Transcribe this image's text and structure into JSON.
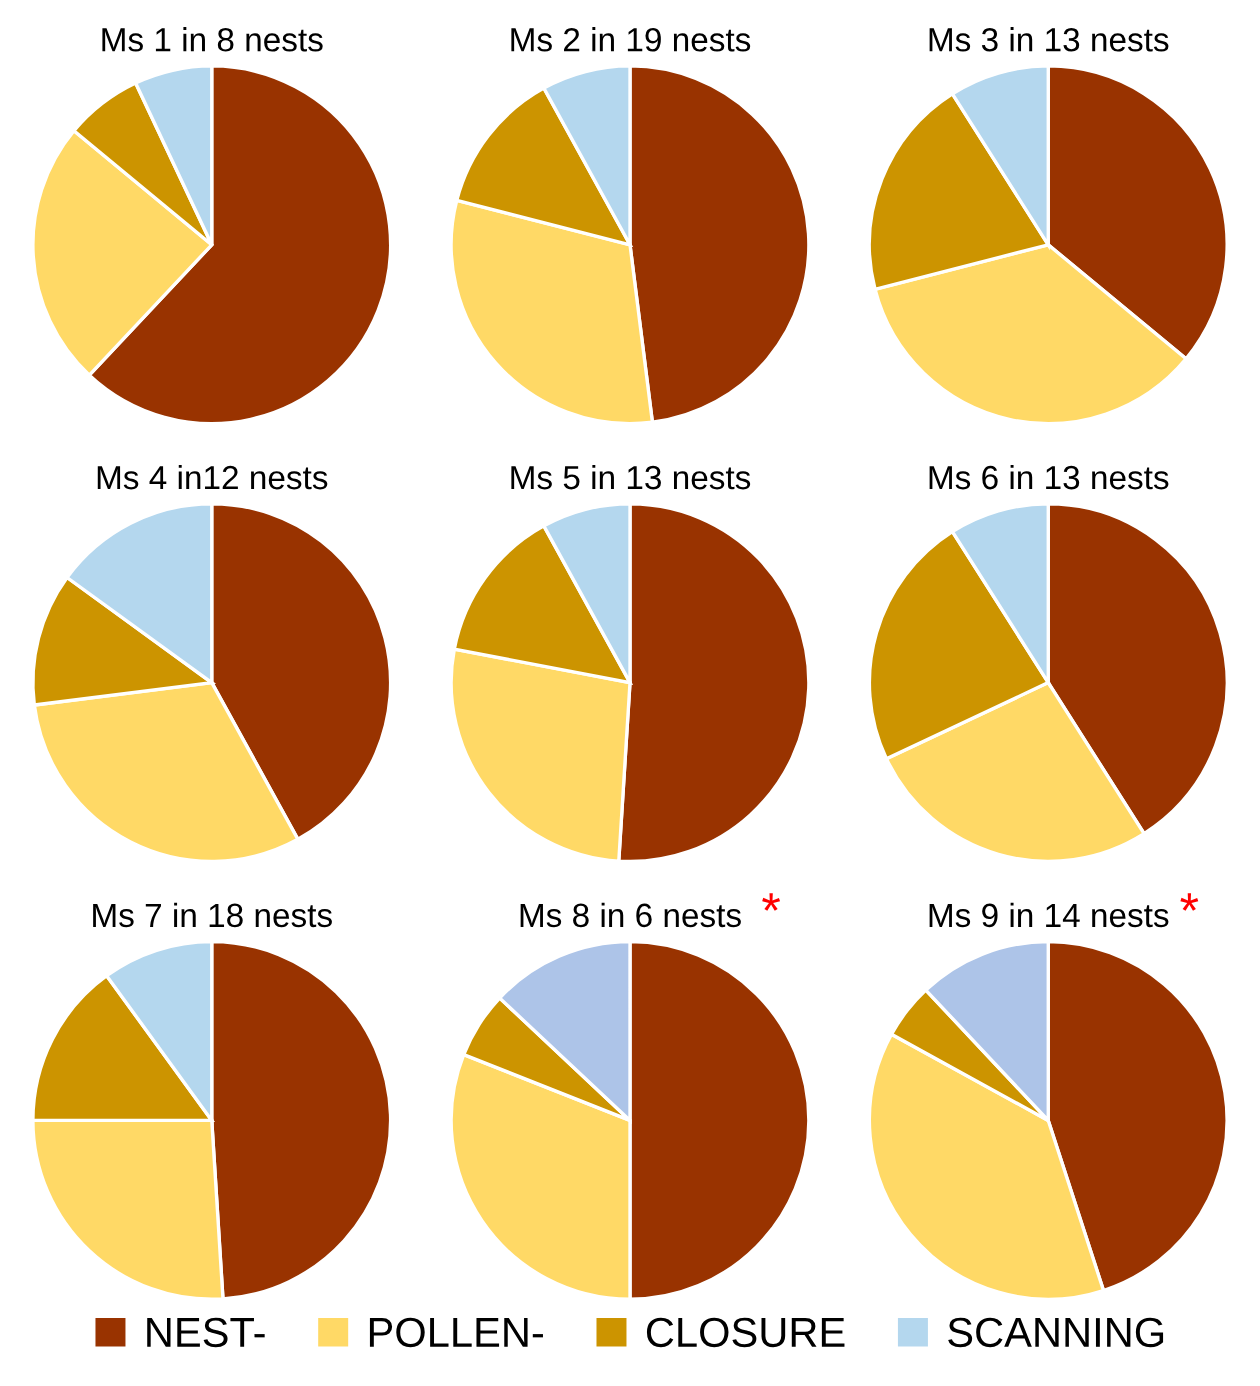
{
  "chart_data": [
    {
      "type": "pie",
      "title": "Ms 1 in 8 nests",
      "legend": "bottom",
      "categories": [
        "NEST-",
        "POLLEN-",
        "CLOSURE",
        "SCANNING"
      ],
      "values": [
        62,
        24,
        7,
        7
      ],
      "colors": [
        "#993300",
        "#ffd966",
        "#cc9400",
        "#b4d7ee"
      ]
    },
    {
      "type": "pie",
      "title": "Ms 2 in 19 nests",
      "categories": [
        null,
        null,
        null,
        null
      ],
      "values": [
        48,
        31,
        13,
        8
      ],
      "colors": [
        "#993300",
        "#ffd966",
        "#cc9400",
        "#b4d7ee"
      ]
    },
    {
      "type": "pie",
      "title": "Ms 3 in 13 nests",
      "categories": [
        null,
        null,
        null,
        null
      ],
      "values": [
        36,
        35,
        20,
        9
      ],
      "colors": [
        "#993300",
        "#ffd966",
        "#cc9400",
        "#b4d7ee"
      ]
    },
    {
      "type": "pie",
      "title": "Ms 4 in12 nests",
      "categories": [
        null,
        null,
        null,
        null
      ],
      "values": [
        42,
        31,
        12,
        15
      ],
      "colors": [
        "#993300",
        "#ffd966",
        "#cc9400",
        "#b4d7ee"
      ]
    },
    {
      "type": "pie",
      "title": "Ms 5 in 13 nests",
      "categories": [
        null,
        null,
        null,
        null
      ],
      "values": [
        51,
        27,
        14,
        8
      ],
      "colors": [
        "#993300",
        "#ffd966",
        "#cc9400",
        "#b4d7ee"
      ]
    },
    {
      "type": "pie",
      "title": "Ms 6 in 13 nests",
      "categories": [
        null,
        null,
        null,
        null
      ],
      "values": [
        41,
        27,
        23,
        9
      ],
      "colors": [
        "#993300",
        "#ffd966",
        "#cc9400",
        "#b4d7ee"
      ]
    },
    {
      "type": "pie",
      "title": "Ms 7 in 18 nests",
      "categories": [
        null,
        null,
        null,
        null
      ],
      "values": [
        49,
        26,
        15,
        10
      ],
      "colors": [
        "#993300",
        "#ffd966",
        "#cc9400",
        "#b4d7ee"
      ]
    },
    {
      "type": "pie",
      "title": "Ms 8 in 6 nests",
      "annotations": [
        "*"
      ],
      "categories": [
        null,
        null,
        null,
        null
      ],
      "values": [
        50,
        31,
        6,
        13
      ],
      "colors": [
        "#993300",
        "#ffd966",
        "#cc9400",
        "#adc4e8"
      ]
    },
    {
      "type": "pie",
      "title": "Ms 9 in 14 nests",
      "annotations": [
        "*"
      ],
      "categories": [
        null,
        null,
        null,
        null
      ],
      "values": [
        45,
        38,
        5,
        12
      ],
      "colors": [
        "#993300",
        "#ffd966",
        "#cc9400",
        "#adc4e8"
      ]
    }
  ]
}
